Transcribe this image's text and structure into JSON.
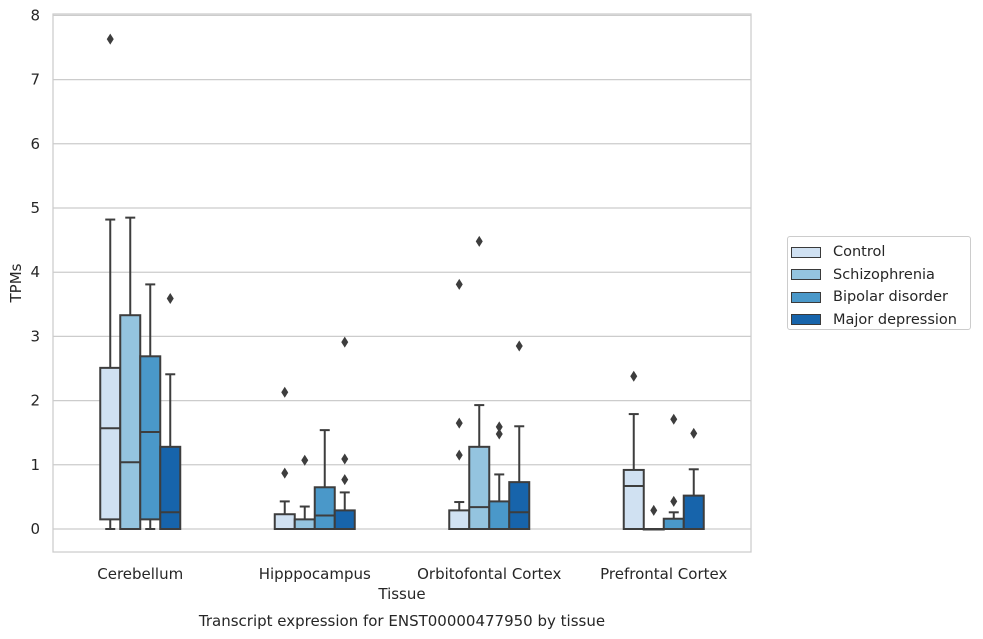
{
  "chart_data": {
    "type": "box",
    "title": "Transcript expression for ENST00000477950 by tissue",
    "xlabel": "Tissue",
    "ylabel": "TPMs",
    "ylim": [
      -0.35,
      8.05
    ],
    "yticks": [
      0,
      1,
      2,
      3,
      4,
      5,
      6,
      7,
      8
    ],
    "grid": "horizontal",
    "legend_position": "right",
    "categories": [
      "Cerebellum",
      "Hipppocampus",
      "Orbitofontal Cortex",
      "Prefrontal Cortex"
    ],
    "series": [
      {
        "name": "Control",
        "color": "#d0e1f2",
        "boxes": [
          {
            "q1": 0.15,
            "median": 1.57,
            "q3": 2.51,
            "whisker_low": 0.0,
            "whisker_high": 4.82,
            "outliers": [
              7.63
            ]
          },
          {
            "q1": 0.0,
            "median": 0.0,
            "q3": 0.23,
            "whisker_low": 0.0,
            "whisker_high": 0.43,
            "outliers": [
              0.87,
              2.13
            ]
          },
          {
            "q1": 0.0,
            "median": 0.0,
            "q3": 0.29,
            "whisker_low": 0.0,
            "whisker_high": 0.42,
            "outliers": [
              1.15,
              1.65,
              3.81
            ]
          },
          {
            "q1": 0.0,
            "median": 0.67,
            "q3": 0.92,
            "whisker_low": 0.0,
            "whisker_high": 1.79,
            "outliers": [
              2.38
            ]
          }
        ]
      },
      {
        "name": "Schizophrenia",
        "color": "#94c4df",
        "boxes": [
          {
            "q1": 0.0,
            "median": 1.04,
            "q3": 3.33,
            "whisker_low": 0.0,
            "whisker_high": 4.85,
            "outliers": []
          },
          {
            "q1": 0.0,
            "median": 0.0,
            "q3": 0.15,
            "whisker_low": 0.0,
            "whisker_high": 0.35,
            "outliers": [
              1.07
            ]
          },
          {
            "q1": 0.0,
            "median": 0.34,
            "q3": 1.28,
            "whisker_low": 0.0,
            "whisker_high": 1.93,
            "outliers": [
              4.48
            ]
          },
          {
            "q1": 0.0,
            "median": 0.0,
            "q3": 0.0,
            "whisker_low": 0.0,
            "whisker_high": 0.0,
            "outliers": [
              0.29
            ]
          }
        ]
      },
      {
        "name": "Bipolar disorder",
        "color": "#4a98c9",
        "boxes": [
          {
            "q1": 0.15,
            "median": 1.51,
            "q3": 2.69,
            "whisker_low": 0.0,
            "whisker_high": 3.81,
            "outliers": []
          },
          {
            "q1": 0.0,
            "median": 0.21,
            "q3": 0.65,
            "whisker_low": 0.0,
            "whisker_high": 1.54,
            "outliers": []
          },
          {
            "q1": 0.0,
            "median": 0.0,
            "q3": 0.43,
            "whisker_low": 0.0,
            "whisker_high": 0.85,
            "outliers": [
              1.48,
              1.59
            ]
          },
          {
            "q1": 0.0,
            "median": 0.0,
            "q3": 0.16,
            "whisker_low": 0.0,
            "whisker_high": 0.26,
            "outliers": [
              0.43,
              1.71
            ]
          }
        ]
      },
      {
        "name": "Major depression",
        "color": "#1764ab",
        "boxes": [
          {
            "q1": 0.0,
            "median": 0.26,
            "q3": 1.28,
            "whisker_low": 0.0,
            "whisker_high": 2.41,
            "outliers": [
              3.59
            ]
          },
          {
            "q1": 0.0,
            "median": 0.0,
            "q3": 0.29,
            "whisker_low": 0.0,
            "whisker_high": 0.57,
            "outliers": [
              0.77,
              1.09,
              2.91
            ]
          },
          {
            "q1": 0.0,
            "median": 0.26,
            "q3": 0.73,
            "whisker_low": 0.0,
            "whisker_high": 1.6,
            "outliers": [
              2.85
            ]
          },
          {
            "q1": 0.0,
            "median": 0.0,
            "q3": 0.52,
            "whisker_low": 0.0,
            "whisker_high": 0.93,
            "outliers": [
              1.49
            ]
          }
        ]
      }
    ]
  }
}
